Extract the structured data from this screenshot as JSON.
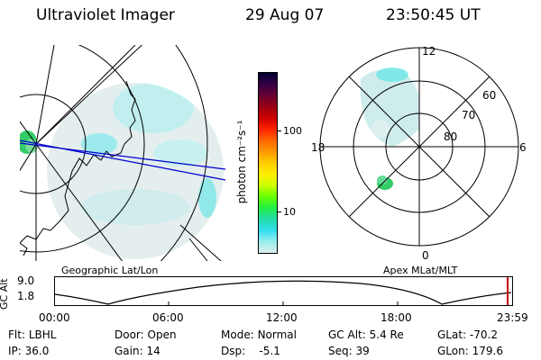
{
  "header": {
    "title": "Ultraviolet Imager",
    "date": "29 Aug 07",
    "time": "23:50:45 UT"
  },
  "left_map": {
    "caption": "Geographic Lat/Lon"
  },
  "right_map": {
    "caption": "Apex  MLat/MLT",
    "mlt_labels": {
      "top": "12",
      "left": "18",
      "right": "6",
      "bottom": "0"
    },
    "mlat_labels": [
      "60",
      "70",
      "80"
    ]
  },
  "colorbar": {
    "axis_label": "photon cm⁻²s⁻¹",
    "ticks": [
      "100",
      "10"
    ],
    "colors": [
      "#000033",
      "#330044",
      "#660033",
      "#990011",
      "#cc0000",
      "#ff2200",
      "#ff6600",
      "#ff9900",
      "#ffcc00",
      "#ffee00",
      "#ccff00",
      "#66ff00",
      "#22ee44",
      "#22ddaa",
      "#33ddee",
      "#99eeee",
      "#ddeeee"
    ]
  },
  "gc_alt_plot": {
    "ylabel": "GC Alt",
    "ymax": "9.0",
    "ymin": "1.8",
    "xticks": [
      "00:00",
      "06:00",
      "12:00",
      "18:00",
      "23:59"
    ]
  },
  "status": {
    "row1": [
      {
        "label": "Flt:",
        "value": "LBHL"
      },
      {
        "label": "Door:",
        "value": "Open"
      },
      {
        "label": "Mode:",
        "value": "Normal"
      },
      {
        "label": "GC Alt:",
        "value": "5.4 Re"
      },
      {
        "label": "GLat:",
        "value": "-70.2"
      }
    ],
    "row2": [
      {
        "label": "IP:",
        "value": "36.0"
      },
      {
        "label": "Gain:",
        "value": "14"
      },
      {
        "label": "Dsp:",
        "value": "   -5.1"
      },
      {
        "label": "Seq:",
        "value": "39"
      },
      {
        "label": "GLon:",
        "value": "179.6"
      }
    ]
  }
}
